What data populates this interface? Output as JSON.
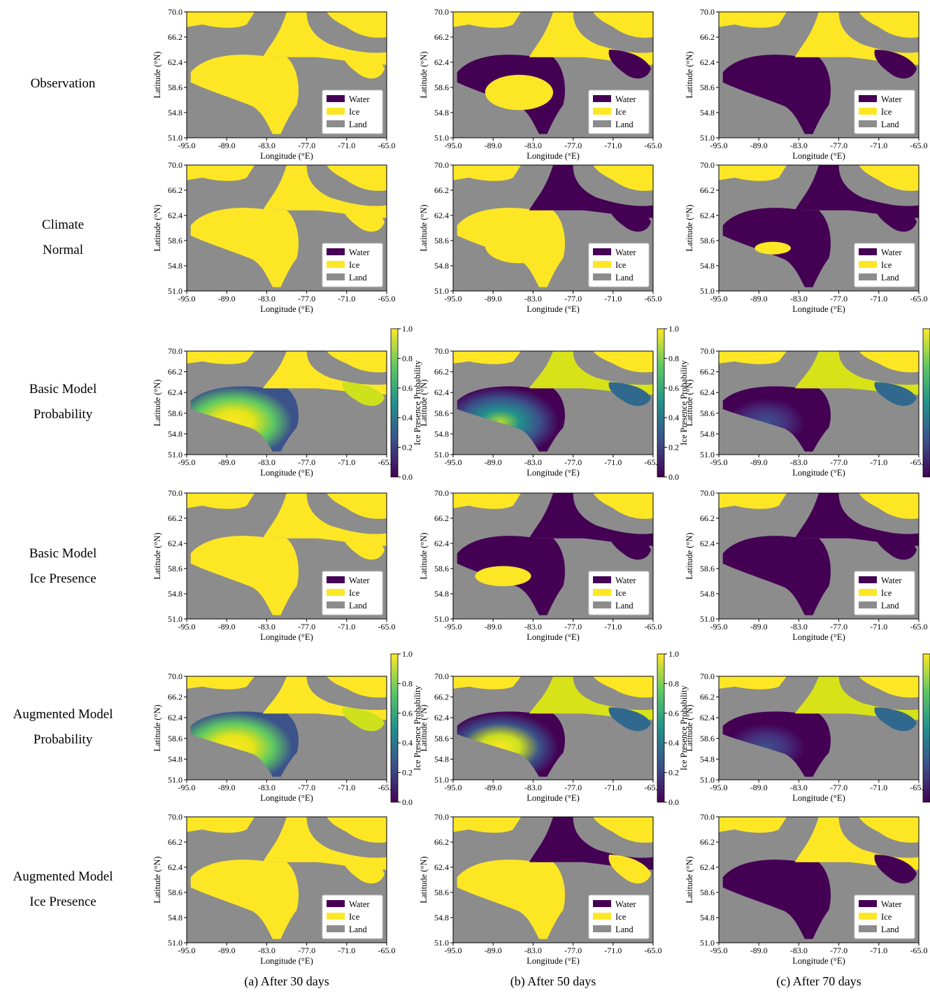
{
  "rows": [
    {
      "label": [
        "Observation"
      ],
      "kind": "map"
    },
    {
      "label": [
        "Climate",
        "Normal"
      ],
      "kind": "map"
    },
    {
      "label": [
        "Basic Model",
        "Probability"
      ],
      "kind": "prob"
    },
    {
      "label": [
        "Basic Model",
        "Ice Presence"
      ],
      "kind": "map"
    },
    {
      "label": [
        "Augmented Model",
        "Probability"
      ],
      "kind": "prob"
    },
    {
      "label": [
        "Augmented Model",
        "Ice Presence"
      ],
      "kind": "map"
    }
  ],
  "columns": [
    {
      "caption": "(a) After 30 days"
    },
    {
      "caption": "(b) After 50 days"
    },
    {
      "caption": "(c) After 70 days"
    }
  ],
  "axes": {
    "xlabel": "Longitude (°E)",
    "ylabel": "Latitude (°N)",
    "xticks": [
      "-95.0",
      "-89.0",
      "-83.0",
      "-77.0",
      "-71.0",
      "-65.0"
    ],
    "yticks": [
      "70.0",
      "66.2",
      "62.4",
      "58.6",
      "54.8",
      "51.0"
    ],
    "xlim": [
      -95.0,
      -65.0
    ],
    "ylim": [
      51.0,
      70.0
    ]
  },
  "legend": {
    "items": [
      {
        "label": "Water",
        "color": "#440154"
      },
      {
        "label": "Ice",
        "color": "#fde725"
      },
      {
        "label": "Land",
        "color": "#8c8c8c"
      }
    ],
    "placement": "lower-right"
  },
  "colorbar": {
    "label": "Ice Presence Probability",
    "ticks": [
      "1.0",
      "0.8",
      "0.6",
      "0.4",
      "0.2",
      "0.0"
    ],
    "range": [
      0.0,
      1.0
    ],
    "colormap": [
      "#440154",
      "#3b528b",
      "#21918c",
      "#5ec962",
      "#fde725"
    ]
  },
  "colors": {
    "water": "#440154",
    "ice": "#fde725",
    "land": "#8c8c8c"
  }
}
